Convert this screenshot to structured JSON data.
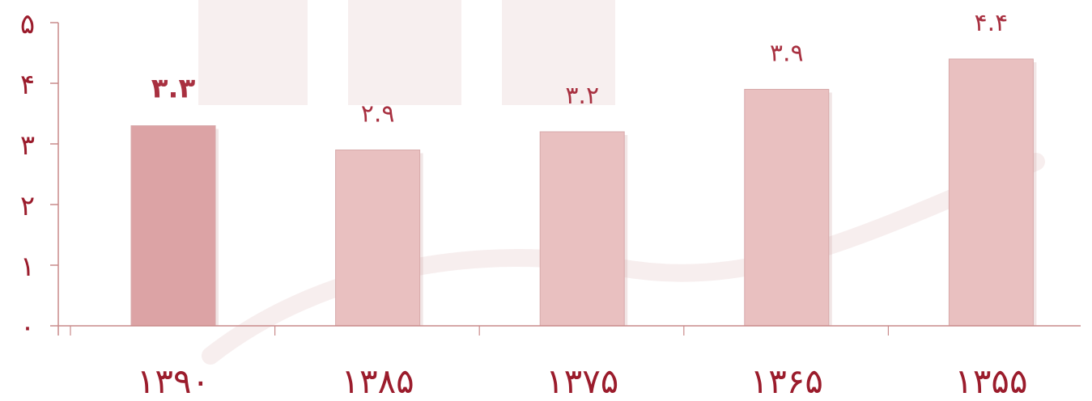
{
  "colors": {
    "axis": "#c98a8a",
    "tick_text": "#9b1c2c",
    "label_text": "#a83040",
    "bar_fill": "#e9c0c0",
    "bar_fill_highlight": "#dca3a5",
    "watermark": "#f1e2e2"
  },
  "chart_data": {
    "type": "bar",
    "categories": [
      "۱۳۹۰",
      "۱۳۸۵",
      "۱۳۷۵",
      "۱۳۶۵",
      "۱۳۵۵"
    ],
    "values": [
      3.3,
      2.9,
      3.2,
      3.9,
      4.4
    ],
    "data_labels": [
      "۳.۳",
      "۲.۹",
      "۳.۲",
      "۳.۹",
      "۴.۴"
    ],
    "highlight_index": 0,
    "yticks": [
      0,
      1,
      2,
      3,
      4,
      5
    ],
    "ytick_labels": [
      "۰",
      "۱",
      "۲",
      "۳",
      "۴",
      "۵"
    ],
    "ylim": [
      0,
      5
    ],
    "grid": false,
    "legend": "none"
  }
}
